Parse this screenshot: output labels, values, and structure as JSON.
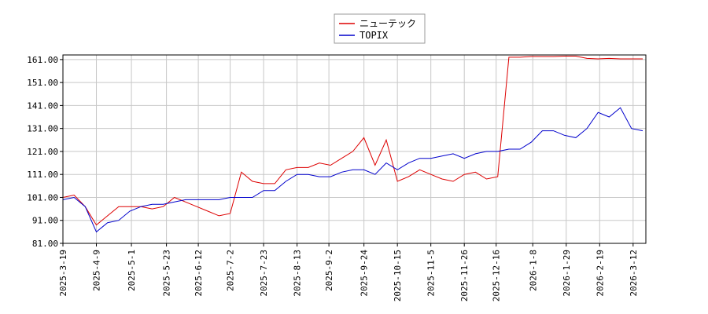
{
  "chart_data": {
    "type": "line",
    "x": [
      "2025-3-19",
      "2025-3-26",
      "2025-4-2",
      "2025-4-9",
      "2025-4-16",
      "2025-4-23",
      "2025-4-30",
      "2025-5-7",
      "2025-5-14",
      "2025-5-21",
      "2025-5-28",
      "2025-6-4",
      "2025-6-11",
      "2025-6-18",
      "2025-6-25",
      "2025-7-2",
      "2025-7-9",
      "2025-7-16",
      "2025-7-23",
      "2025-7-30",
      "2025-8-6",
      "2025-8-13",
      "2025-8-20",
      "2025-8-27",
      "2025-9-3",
      "2025-9-10",
      "2025-9-17",
      "2025-9-24",
      "2025-10-1",
      "2025-10-8",
      "2025-10-15",
      "2025-10-22",
      "2025-10-29",
      "2025-11-5",
      "2025-11-12",
      "2025-11-19",
      "2025-11-26",
      "2025-12-3",
      "2025-12-10",
      "2025-12-17",
      "2025-12-24",
      "2025-12-31",
      "2026-1-7",
      "2026-1-14",
      "2026-1-21",
      "2026-1-28",
      "2026-2-4",
      "2026-2-11",
      "2026-2-18",
      "2026-2-25",
      "2026-3-4",
      "2026-3-11",
      "2026-3-18"
    ],
    "series": [
      {
        "name": "ニューテック",
        "color": "#dd0000",
        "values": [
          101,
          102,
          97,
          89,
          93,
          97,
          97,
          97,
          96,
          97,
          101,
          99,
          97,
          95,
          93,
          94,
          112,
          108,
          107,
          107,
          113,
          114,
          114,
          116,
          115,
          118,
          121,
          127,
          115,
          126,
          108,
          110,
          113,
          111,
          109,
          108,
          111,
          112,
          109,
          110,
          162,
          162,
          162.3,
          162.3,
          162.3,
          162.5,
          162.5,
          161.5,
          161.3,
          161.5,
          161.3,
          161.3,
          161.3
        ]
      },
      {
        "name": "TOPIX",
        "color": "#0000cc",
        "values": [
          100,
          101,
          97,
          86,
          90,
          91,
          95,
          97,
          98,
          98,
          99,
          100,
          100,
          100,
          100,
          101,
          101,
          101,
          104,
          104,
          108,
          111,
          111,
          110,
          110,
          112,
          113,
          113,
          111,
          116,
          113,
          116,
          118,
          118,
          119,
          120,
          118,
          120,
          121,
          121,
          122,
          122,
          125,
          130,
          130,
          128,
          127,
          131,
          138,
          136,
          140,
          131,
          130
        ]
      }
    ],
    "xlim": [
      "2025-3-19",
      "2026-3-20"
    ],
    "xticks": [
      "2025-3-19",
      "2025-4-9",
      "2025-5-1",
      "2025-5-23",
      "2025-6-12",
      "2025-7-2",
      "2025-7-23",
      "2025-8-13",
      "2025-9-2",
      "2025-9-24",
      "2025-10-15",
      "2025-11-5",
      "2025-11-26",
      "2025-12-16",
      "2026-1-8",
      "2026-1-29",
      "2026-2-19",
      "2026-3-12"
    ],
    "ylim": [
      81,
      163
    ],
    "yticks": [
      {
        "value": 81,
        "label": "81.00"
      },
      {
        "value": 91,
        "label": "91.00"
      },
      {
        "value": 101,
        "label": "101.00"
      },
      {
        "value": 111,
        "label": "111.00"
      },
      {
        "value": 121,
        "label": "121.00"
      },
      {
        "value": 131,
        "label": "131.00"
      },
      {
        "value": 141,
        "label": "141.00"
      },
      {
        "value": 151,
        "label": "151.00"
      },
      {
        "value": 161,
        "label": "161.00"
      }
    ],
    "grid": true,
    "legend": "top"
  }
}
